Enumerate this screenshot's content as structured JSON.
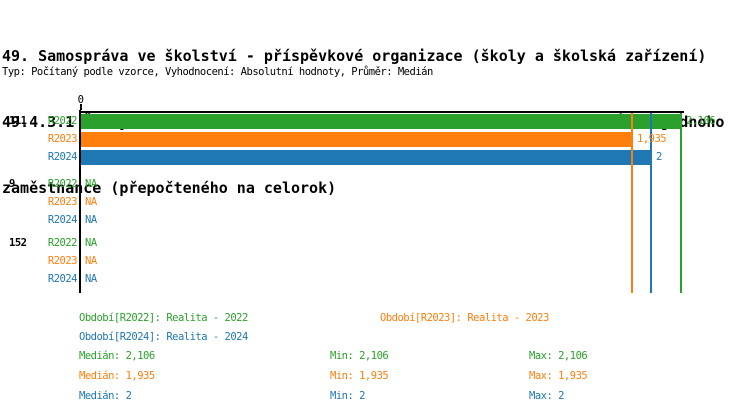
{
  "header": {
    "title_lines": [
      "49. Samospráva ve školství - příspěvkové organizace (školy a školská zařízení)",
      "49.4.3.1 Školy zřízené dle § 16 odst. 9 školského zákona - Počet žáků na jednoho",
      "zaměstnance (přepočteného na celorok)"
    ],
    "subtitle": "Typ: Počítaný podle vzorce, Vyhodnocení: Absolutní hodnoty, Průměr: Medián"
  },
  "colors": {
    "R2022": "#2ca02c",
    "R2023": "#ff7f0e",
    "R2024": "#1f77b4",
    "axis": "#000000"
  },
  "chart_data": {
    "type": "bar",
    "orientation": "horizontal",
    "value_axis": {
      "tick_labels": [
        "0"
      ],
      "min": 0,
      "max_shown": 2.12,
      "position": "top"
    },
    "series": [
      {
        "name": "R2022",
        "color": "#2ca02c"
      },
      {
        "name": "R2023",
        "color": "#ff7f0e"
      },
      {
        "name": "R2024",
        "color": "#1f77b4"
      }
    ],
    "groups": [
      {
        "label": "111",
        "bars": [
          {
            "series": "R2022",
            "value": 2.106,
            "value_label": "2,106"
          },
          {
            "series": "R2023",
            "value": 1.935,
            "value_label": "1,935"
          },
          {
            "series": "R2024",
            "value": 2,
            "value_label": "2"
          }
        ]
      },
      {
        "label": "9",
        "bars": [
          {
            "series": "R2022",
            "value": null,
            "value_label": "NA"
          },
          {
            "series": "R2023",
            "value": null,
            "value_label": "NA"
          },
          {
            "series": "R2024",
            "value": null,
            "value_label": "NA"
          }
        ]
      },
      {
        "label": "152",
        "bars": [
          {
            "series": "R2022",
            "value": null,
            "value_label": "NA"
          },
          {
            "series": "R2023",
            "value": null,
            "value_label": "NA"
          },
          {
            "series": "R2024",
            "value": null,
            "value_label": "NA"
          }
        ]
      }
    ],
    "median_lines": [
      {
        "series": "R2022",
        "value": 2.106
      },
      {
        "series": "R2023",
        "value": 1.935
      },
      {
        "series": "R2024",
        "value": 2
      }
    ]
  },
  "legend": {
    "items": [
      {
        "series": "R2022",
        "label": "Období[R2022]: Realita - 2022"
      },
      {
        "series": "R2023",
        "label": "Období[R2023]: Realita - 2023"
      },
      {
        "series": "R2024",
        "label": "Období[R2024]: Realita - 2024"
      }
    ]
  },
  "stats": {
    "rows": [
      {
        "series": "R2022",
        "median": "Medián: 2,106",
        "min": "Min: 2,106",
        "max": "Max: 2,106"
      },
      {
        "series": "R2023",
        "median": "Medián: 1,935",
        "min": "Min: 1,935",
        "max": "Max: 1,935"
      },
      {
        "series": "R2024",
        "median": "Medián: 2",
        "min": "Min: 2",
        "max": "Max: 2"
      }
    ]
  }
}
